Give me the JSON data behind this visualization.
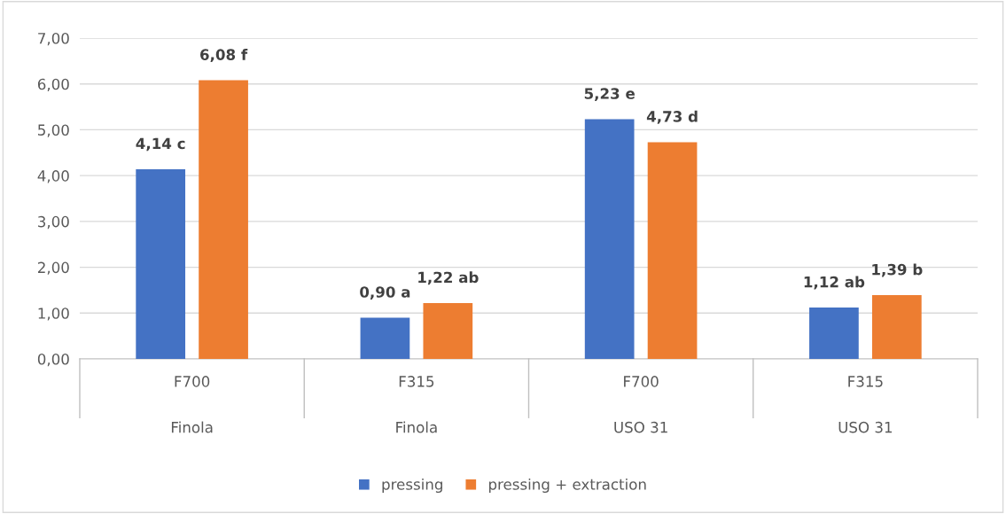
{
  "chart_data": {
    "type": "bar",
    "categories": [
      "F700\nFinola",
      "F315\nFinola",
      "F700\nUSO 31",
      "F315\nUSO 31"
    ],
    "series": [
      {
        "name": "pressing",
        "color": "#4472c4",
        "values": [
          4.14,
          0.9,
          5.23,
          1.12
        ],
        "value_labels": [
          "4,14 c",
          "0,90 a",
          "5,23 e",
          "1,12 ab"
        ]
      },
      {
        "name": "pressing + extraction",
        "color": "#ed7d31",
        "values": [
          6.08,
          1.22,
          4.73,
          1.39
        ],
        "value_labels": [
          "6,08 f",
          "1,22 ab",
          "4,73 d",
          "1,39 b"
        ]
      }
    ],
    "ylim": [
      0,
      7
    ],
    "yticks": [
      {
        "value": 0,
        "label": "0,00"
      },
      {
        "value": 1,
        "label": "1,00"
      },
      {
        "value": 2,
        "label": "2,00"
      },
      {
        "value": 3,
        "label": "3,00"
      },
      {
        "value": 4,
        "label": "4,00"
      },
      {
        "value": 5,
        "label": "5,00"
      },
      {
        "value": 6,
        "label": "6,00"
      },
      {
        "value": 7,
        "label": "7,00"
      }
    ],
    "grid": "y",
    "legend": "bottom"
  }
}
